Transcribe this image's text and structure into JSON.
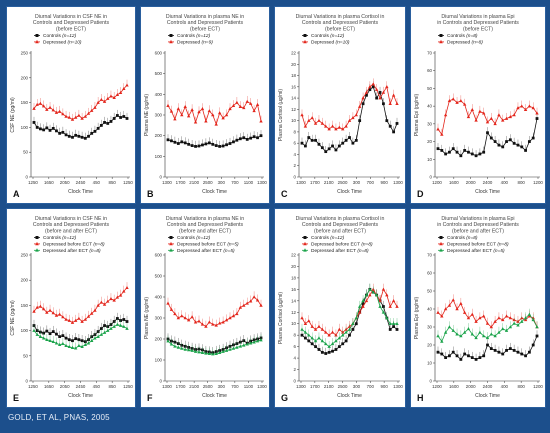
{
  "footer": "GOLD, ET AL, PNAS, 2005",
  "colors": {
    "controls": "#111111",
    "depressed": "#e3251b",
    "after": "#1aa34a"
  },
  "chart_data": [
    {
      "type": "line",
      "panel_label": "A",
      "title": [
        "Diurnal Variations in CSF NE in",
        "Controls and Depressed Patients",
        "(before ECT)"
      ],
      "xlabel": "Clock Time",
      "ylabel": "CSF NE (pg/ml)",
      "ylim": [
        0,
        250
      ],
      "yticks": [
        0,
        50,
        100,
        150,
        200,
        250
      ],
      "xtick_labels": [
        "1250",
        "1650",
        "2050",
        "2450",
        "450",
        "850",
        "1250"
      ],
      "series": [
        {
          "name": "Controls",
          "n": "(n=12)",
          "marker": "square",
          "color": "#111111",
          "values": [
            110,
            100,
            97,
            95,
            99,
            94,
            98,
            93,
            88,
            90,
            85,
            82,
            80,
            84,
            82,
            80,
            78,
            82,
            88,
            92,
            98,
            104,
            110,
            108,
            112,
            118,
            124,
            120,
            122,
            118
          ]
        },
        {
          "name": "Depressed",
          "n": "(n=10)",
          "marker": "triangle",
          "color": "#e3251b",
          "values": [
            138,
            146,
            148,
            143,
            136,
            140,
            135,
            130,
            132,
            127,
            122,
            120,
            116,
            120,
            124,
            118,
            122,
            128,
            134,
            140,
            150,
            156,
            152,
            158,
            163,
            160,
            166,
            170,
            178,
            185
          ]
        }
      ]
    },
    {
      "type": "line",
      "panel_label": "B",
      "title": [
        "Diurnal Variations in plasma NE in",
        "Controls and Depressed Patients",
        "(before ECT)"
      ],
      "xlabel": "Clock Time",
      "ylabel": "Plasma NE (pg/ml)",
      "ylim": [
        0,
        600
      ],
      "yticks": [
        0,
        100,
        200,
        300,
        400,
        500,
        600
      ],
      "xtick_labels": [
        "1300",
        "1700",
        "2100",
        "2500",
        "300",
        "700",
        "1100",
        "1300"
      ],
      "series": [
        {
          "name": "Controls",
          "n": "(n=12)",
          "marker": "square",
          "color": "#111111",
          "values": [
            180,
            175,
            168,
            162,
            170,
            165,
            158,
            152,
            148,
            150,
            155,
            160,
            165,
            158,
            152,
            148,
            150,
            156,
            162,
            170,
            178,
            185,
            190,
            182,
            188,
            195,
            190,
            200
          ]
        },
        {
          "name": "Depressed",
          "n": "(n=9)",
          "marker": "triangle",
          "color": "#e3251b",
          "values": [
            345,
            318,
            280,
            330,
            300,
            340,
            295,
            325,
            265,
            315,
            330,
            270,
            320,
            300,
            255,
            310,
            285,
            300,
            330,
            345,
            360,
            340,
            335,
            365,
            355,
            320,
            350,
            270
          ]
        }
      ]
    },
    {
      "type": "line",
      "panel_label": "C",
      "title": [
        "Diurnal Variations in plasma Cortisol in",
        "Controls and Depressed Patients",
        "(before ECT)"
      ],
      "xlabel": "Clock Time",
      "ylabel": "Plasma Cortisol (µg/ml)",
      "ylim": [
        0,
        22
      ],
      "yticks": [
        0,
        2,
        4,
        6,
        8,
        10,
        12,
        14,
        16,
        18,
        20,
        22
      ],
      "xtick_labels": [
        "1300",
        "1700",
        "2100",
        "2500",
        "300",
        "700",
        "900",
        "1300"
      ],
      "series": [
        {
          "name": "Controls",
          "n": "(n=12)",
          "marker": "square",
          "color": "#111111",
          "values": [
            6,
            5.5,
            7,
            6.5,
            6.5,
            5.8,
            5.2,
            4.5,
            5,
            5.5,
            4.8,
            5.5,
            6,
            6.5,
            7,
            6,
            6.5,
            10,
            13,
            14.5,
            15.5,
            16,
            14,
            15,
            13,
            10,
            9,
            8,
            9.5
          ]
        },
        {
          "name": "Depressed",
          "n": "(n=10)",
          "marker": "triangle",
          "color": "#e3251b",
          "values": [
            11,
            9,
            10,
            10.5,
            9.5,
            10,
            9.5,
            9,
            8.5,
            9,
            8.5,
            8.8,
            8.5,
            9,
            10,
            10.5,
            11,
            12.5,
            14,
            15,
            16,
            16.5,
            15.5,
            14,
            15,
            16,
            13,
            14.5,
            13
          ]
        }
      ]
    },
    {
      "type": "line",
      "panel_label": "D",
      "title": [
        "Diurnal Variations in plasma Epi",
        "in Controls and Depressed Patients",
        "(before ECT)"
      ],
      "xlabel": "Clock Time",
      "ylabel": "Plasma Epi (pg/ml)",
      "ylim": [
        0,
        70
      ],
      "yticks": [
        0,
        10,
        20,
        30,
        40,
        50,
        60,
        70
      ],
      "xtick_labels": [
        "1200",
        "1600",
        "2000",
        "2400",
        "400",
        "800",
        "1200"
      ],
      "series": [
        {
          "name": "Controls",
          "n": "(n=8)",
          "marker": "square",
          "color": "#111111",
          "values": [
            16,
            15,
            13,
            14,
            16,
            14,
            12,
            15,
            14,
            13,
            12,
            13,
            14,
            25,
            22,
            20,
            18,
            17,
            20,
            21,
            19,
            18,
            17,
            15,
            20,
            22,
            33
          ]
        },
        {
          "name": "Depressed",
          "n": "(n=8)",
          "marker": "triangle",
          "color": "#e3251b",
          "values": [
            27,
            24,
            35,
            43,
            44,
            42,
            43,
            41,
            34,
            38,
            32,
            37,
            36,
            31,
            33,
            30,
            35,
            32,
            33,
            34,
            35,
            39,
            40,
            38,
            40,
            39,
            36
          ]
        }
      ]
    },
    {
      "type": "line",
      "panel_label": "E",
      "title": [
        "Diurnal Variations in CSF NE in",
        "Controls and Depressed Patients",
        "(before and after ECT)"
      ],
      "xlabel": "Clock Time",
      "ylabel": "CSF NE (pg/ml)",
      "ylim": [
        0,
        250
      ],
      "yticks": [
        0,
        50,
        100,
        150,
        200,
        250
      ],
      "xtick_labels": [
        "1250",
        "1650",
        "2050",
        "2450",
        "450",
        "850",
        "1250"
      ],
      "series": [
        {
          "name": "Controls",
          "n": "(n=12)",
          "marker": "square",
          "color": "#111111",
          "values": [
            110,
            100,
            97,
            95,
            99,
            94,
            98,
            93,
            88,
            90,
            85,
            82,
            80,
            84,
            82,
            80,
            78,
            82,
            88,
            92,
            98,
            104,
            110,
            108,
            112,
            118,
            124,
            120,
            122,
            118
          ]
        },
        {
          "name": "Depressed before ECT",
          "n": "(n=8)",
          "marker": "triangle",
          "color": "#e3251b",
          "values": [
            138,
            146,
            148,
            143,
            136,
            140,
            135,
            130,
            132,
            127,
            122,
            120,
            116,
            120,
            124,
            118,
            122,
            128,
            134,
            140,
            150,
            156,
            152,
            158,
            163,
            160,
            166,
            170,
            178,
            185
          ]
        },
        {
          "name": "Depressed after ECT",
          "n": "(n=8)",
          "marker": "triangle",
          "color": "#1aa34a",
          "values": [
            100,
            92,
            88,
            85,
            82,
            80,
            78,
            75,
            72,
            74,
            70,
            68,
            66,
            65,
            70,
            68,
            72,
            75,
            80,
            85,
            88,
            92,
            96,
            100,
            104,
            108,
            112,
            110,
            108,
            104
          ]
        }
      ]
    },
    {
      "type": "line",
      "panel_label": "F",
      "title": [
        "Diurnal Variations in plasma NE in",
        "Controls and Depressed Patients",
        "(before and after ECT)"
      ],
      "xlabel": "Clock Time",
      "ylabel": "Plasma NE (pg/ml)",
      "ylim": [
        0,
        600
      ],
      "yticks": [
        0,
        100,
        200,
        300,
        400,
        500,
        600
      ],
      "xtick_labels": [
        "1300",
        "1700",
        "2100",
        "2500",
        "300",
        "700",
        "1100",
        "1300"
      ],
      "series": [
        {
          "name": "Controls",
          "n": "(n=12)",
          "marker": "square",
          "color": "#111111",
          "values": [
            200,
            190,
            185,
            178,
            170,
            165,
            160,
            155,
            150,
            152,
            148,
            140,
            138,
            135,
            140,
            145,
            150,
            158,
            165,
            172,
            178,
            185,
            192,
            180,
            190,
            196,
            200,
            205
          ]
        },
        {
          "name": "Depressed before ECT",
          "n": "(n=5)",
          "marker": "triangle",
          "color": "#e3251b",
          "values": [
            370,
            340,
            320,
            300,
            310,
            300,
            290,
            305,
            280,
            285,
            270,
            260,
            280,
            270,
            265,
            275,
            280,
            290,
            300,
            310,
            320,
            350,
            360,
            370,
            380,
            400,
            385,
            360
          ]
        },
        {
          "name": "Depressed after ECT",
          "n": "(n=5)",
          "marker": "triangle",
          "color": "#1aa34a",
          "values": [
            190,
            175,
            165,
            160,
            155,
            150,
            148,
            145,
            140,
            138,
            135,
            132,
            130,
            128,
            130,
            135,
            140,
            145,
            150,
            155,
            160,
            165,
            170,
            175,
            180,
            185,
            190,
            195
          ]
        }
      ]
    },
    {
      "type": "line",
      "panel_label": "G",
      "title": [
        "Diurnal Variations in plasma Cortisol in",
        "Controls and Depressed Patients",
        "(before and after ECT)"
      ],
      "xlabel": "Clock Time",
      "ylabel": "Plasma Cortisol (µg/ml)",
      "ylim": [
        0,
        22
      ],
      "yticks": [
        0,
        2,
        4,
        6,
        8,
        10,
        12,
        14,
        16,
        18,
        20,
        22
      ],
      "xtick_labels": [
        "1300",
        "1700",
        "2100",
        "2500",
        "300",
        "700",
        "900",
        "1300"
      ],
      "series": [
        {
          "name": "Controls",
          "n": "(n=12)",
          "marker": "square",
          "color": "#111111",
          "values": [
            8,
            7.5,
            7,
            6.5,
            6,
            5.5,
            5,
            4.8,
            5,
            5.2,
            5.5,
            6,
            6.5,
            7,
            8,
            9,
            10,
            12,
            13.5,
            15,
            16,
            15.5,
            15,
            14,
            13,
            11,
            9,
            9.5,
            9
          ]
        },
        {
          "name": "Depressed before ECT",
          "n": "(n=8)",
          "marker": "triangle",
          "color": "#e3251b",
          "values": [
            11,
            10,
            10.5,
            9.5,
            9,
            9.5,
            9,
            8.5,
            8,
            8.5,
            8,
            9,
            8.5,
            9,
            9.5,
            10,
            11,
            12,
            13,
            14,
            15,
            16,
            15,
            14,
            16,
            15,
            13,
            14,
            13
          ]
        },
        {
          "name": "Depressed after ECT",
          "n": "(n=8)",
          "marker": "triangle",
          "color": "#1aa34a",
          "values": [
            9,
            8.5,
            8,
            7.5,
            7,
            7.5,
            7,
            6.5,
            6,
            6.5,
            7,
            7.5,
            8,
            8.5,
            9,
            10,
            11,
            13,
            14,
            15,
            16,
            15.5,
            15,
            13,
            12,
            11,
            10,
            10,
            10
          ]
        }
      ]
    },
    {
      "type": "line",
      "panel_label": "H",
      "title": [
        "Diurnal Variations in plasma Epi",
        "in Controls and Depressed Patients",
        "(before and after ECT)"
      ],
      "xlabel": "Clock Time",
      "ylabel": "Plasma Epi (pg/ml)",
      "ylim": [
        0,
        70
      ],
      "yticks": [
        0,
        10,
        20,
        30,
        40,
        50,
        60,
        70
      ],
      "xtick_labels": [
        "1200",
        "1600",
        "2000",
        "2400",
        "400",
        "800",
        "1200"
      ],
      "series": [
        {
          "name": "Controls",
          "n": "(n=8)",
          "marker": "square",
          "color": "#111111",
          "values": [
            16,
            15,
            13,
            14,
            16,
            14,
            12,
            15,
            14,
            13,
            12,
            13,
            14,
            20,
            18,
            17,
            16,
            15,
            17,
            18,
            17,
            16,
            15,
            14,
            16,
            20,
            25
          ]
        },
        {
          "name": "Depressed before ECT",
          "n": "(n=8)",
          "marker": "triangle",
          "color": "#e3251b",
          "values": [
            38,
            36,
            40,
            42,
            45,
            40,
            43,
            38,
            35,
            37,
            33,
            35,
            36,
            32,
            30,
            33,
            35,
            34,
            36,
            35,
            34,
            33,
            35,
            34,
            36,
            35,
            30
          ]
        },
        {
          "name": "Depressed after ECT",
          "n": "(n=5)",
          "marker": "triangle",
          "color": "#1aa34a",
          "values": [
            25,
            22,
            27,
            30,
            28,
            26,
            25,
            27,
            29,
            26,
            24,
            27,
            25,
            24,
            26,
            25,
            27,
            29,
            28,
            30,
            32,
            31,
            33,
            35,
            37,
            34,
            30
          ]
        }
      ]
    }
  ]
}
